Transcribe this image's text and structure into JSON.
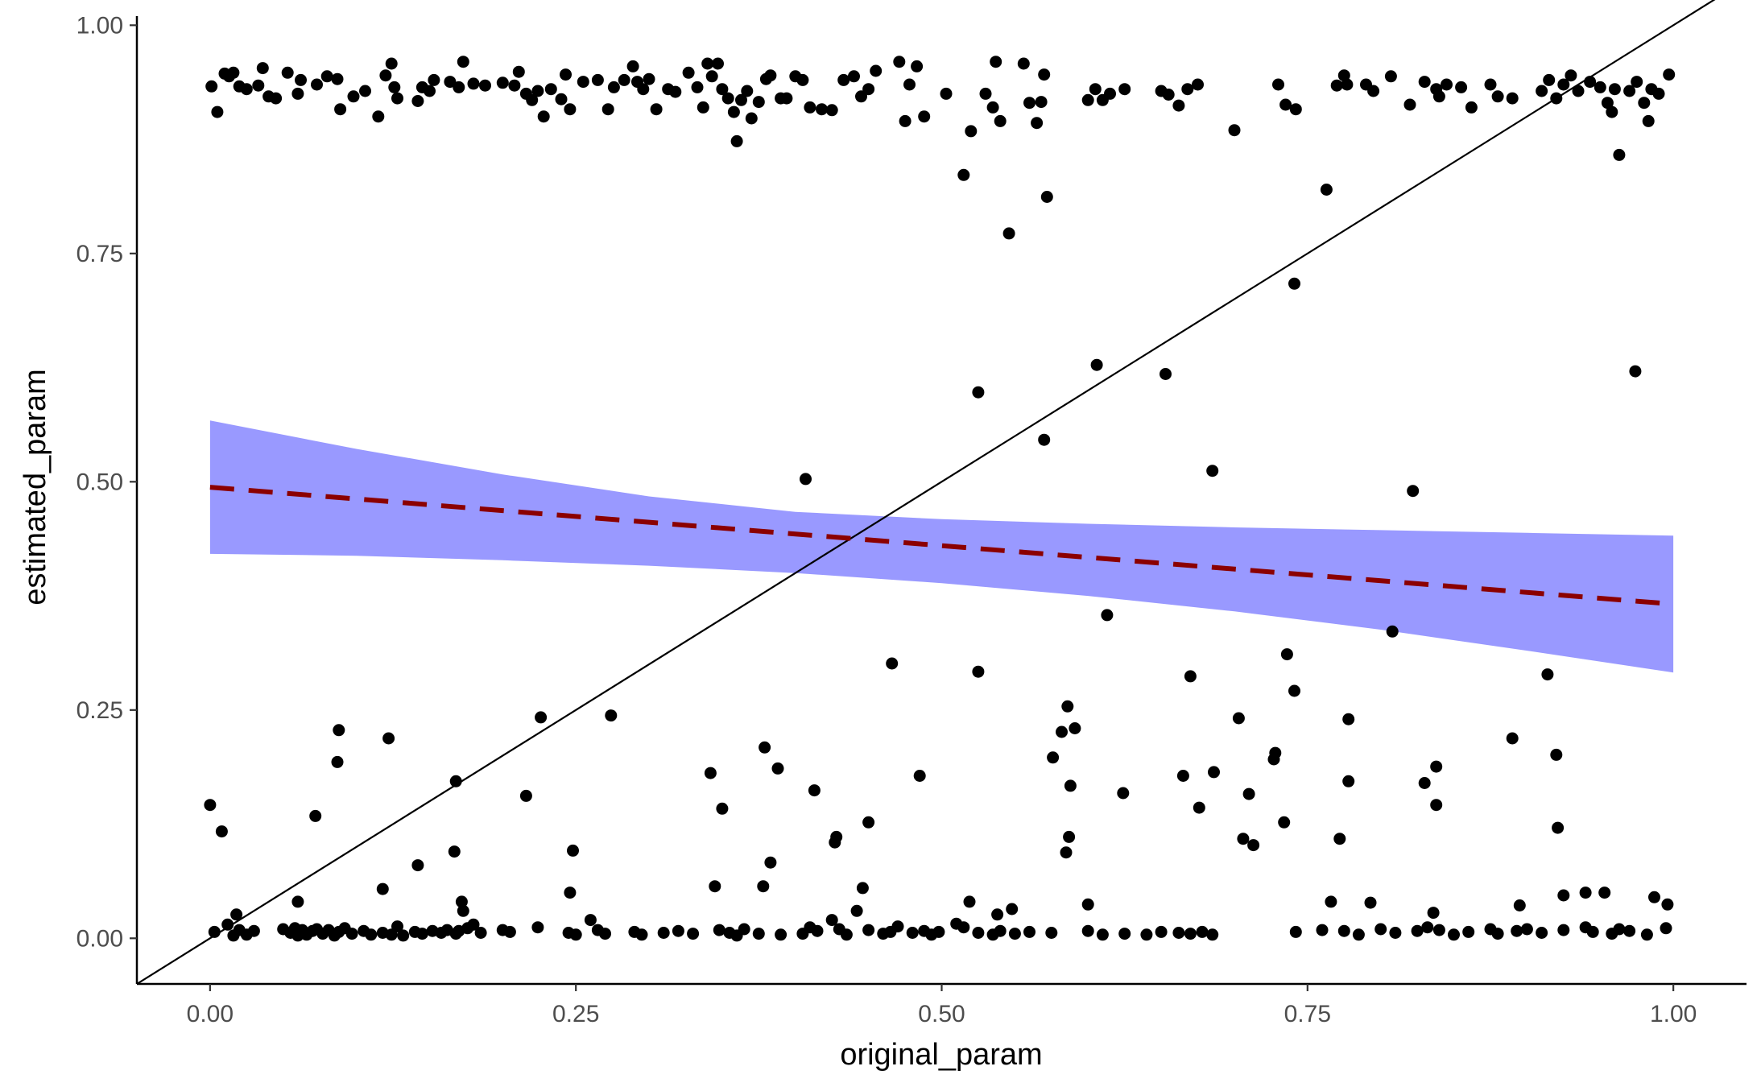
{
  "chart_data": {
    "type": "scatter",
    "title": "",
    "xlabel": "original_param",
    "ylabel": "estimated_param",
    "xlim": [
      -0.05,
      1.05
    ],
    "ylim": [
      -0.05,
      1.01
    ],
    "x_ticks": [
      0.0,
      0.25,
      0.5,
      0.75,
      1.0
    ],
    "x_tick_labels": [
      "0.00",
      "0.25",
      "0.50",
      "0.75",
      "1.00"
    ],
    "y_ticks": [
      0.0,
      0.25,
      0.5,
      0.75,
      1.0
    ],
    "y_tick_labels": [
      "0.00",
      "0.25",
      "0.50",
      "0.75",
      "1.00"
    ],
    "grid": false,
    "legend": "none",
    "identity_line": {
      "from": [
        -0.05,
        -0.05
      ],
      "to": [
        1.05,
        1.05
      ],
      "color": "#000000"
    },
    "fit_line": {
      "x": [
        0.0,
        1.0
      ],
      "y": [
        0.494,
        0.366
      ],
      "color": "#8b0000",
      "style": "dashed"
    },
    "confidence_band": {
      "x": [
        0.0,
        0.1,
        0.2,
        0.3,
        0.4,
        0.5,
        0.6,
        0.7,
        0.8,
        0.9,
        1.0
      ],
      "upper": [
        0.567,
        0.536,
        0.508,
        0.484,
        0.467,
        0.459,
        0.454,
        0.45,
        0.447,
        0.444,
        0.441
      ],
      "lower": [
        0.421,
        0.419,
        0.414,
        0.408,
        0.4,
        0.389,
        0.375,
        0.358,
        0.338,
        0.315,
        0.291
      ],
      "color": "#9999ff"
    },
    "point_color": "#000000",
    "points": [
      [
        0.001,
        0.933
      ],
      [
        0.005,
        0.905
      ],
      [
        0.01,
        0.947
      ],
      [
        0.013,
        0.944
      ],
      [
        0.016,
        0.948
      ],
      [
        0.02,
        0.933
      ],
      [
        0.025,
        0.93
      ],
      [
        0.033,
        0.934
      ],
      [
        0.036,
        0.953
      ],
      [
        0.04,
        0.922
      ],
      [
        0.045,
        0.92
      ],
      [
        0.053,
        0.948
      ],
      [
        0.06,
        0.925
      ],
      [
        0.062,
        0.94
      ],
      [
        0.073,
        0.935
      ],
      [
        0.08,
        0.944
      ],
      [
        0.087,
        0.941
      ],
      [
        0.089,
        0.908
      ],
      [
        0.098,
        0.922
      ],
      [
        0.106,
        0.928
      ],
      [
        0.115,
        0.9
      ],
      [
        0.12,
        0.945
      ],
      [
        0.124,
        0.958
      ],
      [
        0.126,
        0.932
      ],
      [
        0.128,
        0.92
      ],
      [
        0.142,
        0.917
      ],
      [
        0.145,
        0.932
      ],
      [
        0.15,
        0.928
      ],
      [
        0.153,
        0.94
      ],
      [
        0.164,
        0.938
      ],
      [
        0.17,
        0.932
      ],
      [
        0.173,
        0.96
      ],
      [
        0.18,
        0.936
      ],
      [
        0.188,
        0.934
      ],
      [
        0.2,
        0.937
      ],
      [
        0.208,
        0.934
      ],
      [
        0.211,
        0.949
      ],
      [
        0.216,
        0.925
      ],
      [
        0.22,
        0.918
      ],
      [
        0.224,
        0.928
      ],
      [
        0.228,
        0.9
      ],
      [
        0.233,
        0.93
      ],
      [
        0.24,
        0.919
      ],
      [
        0.243,
        0.946
      ],
      [
        0.246,
        0.908
      ],
      [
        0.255,
        0.938
      ],
      [
        0.265,
        0.94
      ],
      [
        0.272,
        0.908
      ],
      [
        0.276,
        0.932
      ],
      [
        0.283,
        0.94
      ],
      [
        0.289,
        0.955
      ],
      [
        0.292,
        0.938
      ],
      [
        0.296,
        0.93
      ],
      [
        0.3,
        0.941
      ],
      [
        0.305,
        0.908
      ],
      [
        0.313,
        0.93
      ],
      [
        0.318,
        0.927
      ],
      [
        0.327,
        0.948
      ],
      [
        0.333,
        0.932
      ],
      [
        0.337,
        0.91
      ],
      [
        0.34,
        0.958
      ],
      [
        0.343,
        0.944
      ],
      [
        0.347,
        0.958
      ],
      [
        0.35,
        0.93
      ],
      [
        0.354,
        0.92
      ],
      [
        0.358,
        0.905
      ],
      [
        0.363,
        0.918
      ],
      [
        0.367,
        0.928
      ],
      [
        0.37,
        0.898
      ],
      [
        0.375,
        0.916
      ],
      [
        0.38,
        0.941
      ],
      [
        0.383,
        0.945
      ],
      [
        0.39,
        0.92
      ],
      [
        0.394,
        0.92
      ],
      [
        0.4,
        0.944
      ],
      [
        0.405,
        0.94
      ],
      [
        0.41,
        0.91
      ],
      [
        0.418,
        0.908
      ],
      [
        0.425,
        0.907
      ],
      [
        0.433,
        0.94
      ],
      [
        0.44,
        0.944
      ],
      [
        0.445,
        0.922
      ],
      [
        0.45,
        0.93
      ],
      [
        0.455,
        0.95
      ],
      [
        0.471,
        0.96
      ],
      [
        0.475,
        0.895
      ],
      [
        0.478,
        0.935
      ],
      [
        0.483,
        0.955
      ],
      [
        0.488,
        0.9
      ],
      [
        0.503,
        0.925
      ],
      [
        0.515,
        0.836
      ],
      [
        0.52,
        0.884
      ],
      [
        0.53,
        0.925
      ],
      [
        0.535,
        0.91
      ],
      [
        0.537,
        0.96
      ],
      [
        0.54,
        0.895
      ],
      [
        0.556,
        0.958
      ],
      [
        0.56,
        0.915
      ],
      [
        0.565,
        0.893
      ],
      [
        0.568,
        0.916
      ],
      [
        0.57,
        0.946
      ],
      [
        0.572,
        0.812
      ],
      [
        0.6,
        0.918
      ],
      [
        0.605,
        0.93
      ],
      [
        0.61,
        0.918
      ],
      [
        0.615,
        0.925
      ],
      [
        0.625,
        0.93
      ],
      [
        0.65,
        0.928
      ],
      [
        0.655,
        0.924
      ],
      [
        0.662,
        0.912
      ],
      [
        0.668,
        0.93
      ],
      [
        0.675,
        0.935
      ],
      [
        0.7,
        0.885
      ],
      [
        0.73,
        0.935
      ],
      [
        0.735,
        0.913
      ],
      [
        0.742,
        0.908
      ],
      [
        0.77,
        0.934
      ],
      [
        0.775,
        0.945
      ],
      [
        0.777,
        0.935
      ],
      [
        0.79,
        0.935
      ],
      [
        0.795,
        0.928
      ],
      [
        0.807,
        0.944
      ],
      [
        0.82,
        0.913
      ],
      [
        0.83,
        0.938
      ],
      [
        0.838,
        0.93
      ],
      [
        0.84,
        0.922
      ],
      [
        0.845,
        0.935
      ],
      [
        0.855,
        0.932
      ],
      [
        0.862,
        0.91
      ],
      [
        0.875,
        0.935
      ],
      [
        0.88,
        0.922
      ],
      [
        0.89,
        0.92
      ],
      [
        0.91,
        0.928
      ],
      [
        0.915,
        0.94
      ],
      [
        0.92,
        0.92
      ],
      [
        0.925,
        0.935
      ],
      [
        0.93,
        0.945
      ],
      [
        0.935,
        0.928
      ],
      [
        0.943,
        0.938
      ],
      [
        0.95,
        0.932
      ],
      [
        0.955,
        0.915
      ],
      [
        0.958,
        0.905
      ],
      [
        0.96,
        0.93
      ],
      [
        0.963,
        0.858
      ],
      [
        0.97,
        0.928
      ],
      [
        0.975,
        0.938
      ],
      [
        0.98,
        0.915
      ],
      [
        0.983,
        0.895
      ],
      [
        0.985,
        0.93
      ],
      [
        0.99,
        0.925
      ],
      [
        0.997,
        0.946
      ],
      [
        0.36,
        0.873
      ],
      [
        0.763,
        0.82
      ],
      [
        0.546,
        0.772
      ],
      [
        0.741,
        0.717
      ],
      [
        0.606,
        0.628
      ],
      [
        0.653,
        0.618
      ],
      [
        0.974,
        0.621
      ],
      [
        0.525,
        0.598
      ],
      [
        0.57,
        0.546
      ],
      [
        0.407,
        0.503
      ],
      [
        0.685,
        0.512
      ],
      [
        0.822,
        0.49
      ],
      [
        0.613,
        0.354
      ],
      [
        0.808,
        0.336
      ],
      [
        0.466,
        0.301
      ],
      [
        0.525,
        0.292
      ],
      [
        0.736,
        0.311
      ],
      [
        0.914,
        0.289
      ],
      [
        0.67,
        0.287
      ],
      [
        0.741,
        0.271
      ],
      [
        0.0,
        0.146
      ],
      [
        0.008,
        0.117
      ],
      [
        0.06,
        0.04
      ],
      [
        0.087,
        0.193
      ],
      [
        0.088,
        0.228
      ],
      [
        0.072,
        0.134
      ],
      [
        0.118,
        0.054
      ],
      [
        0.122,
        0.219
      ],
      [
        0.142,
        0.08
      ],
      [
        0.167,
        0.095
      ],
      [
        0.168,
        0.172
      ],
      [
        0.172,
        0.04
      ],
      [
        0.173,
        0.03
      ],
      [
        0.216,
        0.156
      ],
      [
        0.226,
        0.242
      ],
      [
        0.246,
        0.05
      ],
      [
        0.248,
        0.096
      ],
      [
        0.274,
        0.244
      ],
      [
        0.342,
        0.181
      ],
      [
        0.345,
        0.057
      ],
      [
        0.35,
        0.142
      ],
      [
        0.378,
        0.057
      ],
      [
        0.379,
        0.209
      ],
      [
        0.388,
        0.186
      ],
      [
        0.383,
        0.083
      ],
      [
        0.413,
        0.162
      ],
      [
        0.428,
        0.111
      ],
      [
        0.427,
        0.105
      ],
      [
        0.442,
        0.03
      ],
      [
        0.446,
        0.055
      ],
      [
        0.45,
        0.127
      ],
      [
        0.485,
        0.178
      ],
      [
        0.519,
        0.04
      ],
      [
        0.538,
        0.026
      ],
      [
        0.548,
        0.032
      ],
      [
        0.582,
        0.226
      ],
      [
        0.586,
        0.254
      ],
      [
        0.591,
        0.23
      ],
      [
        0.588,
        0.167
      ],
      [
        0.576,
        0.198
      ],
      [
        0.585,
        0.094
      ],
      [
        0.587,
        0.111
      ],
      [
        0.6,
        0.037
      ],
      [
        0.624,
        0.159
      ],
      [
        0.665,
        0.178
      ],
      [
        0.676,
        0.143
      ],
      [
        0.686,
        0.182
      ],
      [
        0.703,
        0.241
      ],
      [
        0.706,
        0.109
      ],
      [
        0.71,
        0.158
      ],
      [
        0.713,
        0.102
      ],
      [
        0.727,
        0.196
      ],
      [
        0.728,
        0.203
      ],
      [
        0.734,
        0.127
      ],
      [
        0.766,
        0.04
      ],
      [
        0.772,
        0.109
      ],
      [
        0.778,
        0.24
      ],
      [
        0.778,
        0.172
      ],
      [
        0.793,
        0.039
      ],
      [
        0.83,
        0.17
      ],
      [
        0.838,
        0.188
      ],
      [
        0.838,
        0.146
      ],
      [
        0.836,
        0.028
      ],
      [
        0.89,
        0.219
      ],
      [
        0.895,
        0.036
      ],
      [
        0.92,
        0.201
      ],
      [
        0.921,
        0.121
      ],
      [
        0.925,
        0.047
      ],
      [
        0.94,
        0.05
      ],
      [
        0.953,
        0.05
      ],
      [
        0.987,
        0.045
      ],
      [
        0.996,
        0.037
      ],
      [
        0.94,
        0.012
      ],
      [
        0.003,
        0.007
      ],
      [
        0.012,
        0.015
      ],
      [
        0.016,
        0.003
      ],
      [
        0.018,
        0.026
      ],
      [
        0.02,
        0.009
      ],
      [
        0.025,
        0.004
      ],
      [
        0.03,
        0.008
      ],
      [
        0.05,
        0.01
      ],
      [
        0.055,
        0.006
      ],
      [
        0.058,
        0.011
      ],
      [
        0.06,
        0.003
      ],
      [
        0.063,
        0.009
      ],
      [
        0.066,
        0.004
      ],
      [
        0.07,
        0.008
      ],
      [
        0.073,
        0.01
      ],
      [
        0.077,
        0.005
      ],
      [
        0.081,
        0.009
      ],
      [
        0.085,
        0.003
      ],
      [
        0.088,
        0.007
      ],
      [
        0.092,
        0.011
      ],
      [
        0.097,
        0.005
      ],
      [
        0.105,
        0.008
      ],
      [
        0.11,
        0.004
      ],
      [
        0.118,
        0.006
      ],
      [
        0.124,
        0.004
      ],
      [
        0.128,
        0.013
      ],
      [
        0.132,
        0.003
      ],
      [
        0.14,
        0.007
      ],
      [
        0.145,
        0.005
      ],
      [
        0.152,
        0.008
      ],
      [
        0.158,
        0.006
      ],
      [
        0.162,
        0.009
      ],
      [
        0.168,
        0.005
      ],
      [
        0.17,
        0.008
      ],
      [
        0.176,
        0.011
      ],
      [
        0.18,
        0.015
      ],
      [
        0.185,
        0.006
      ],
      [
        0.2,
        0.009
      ],
      [
        0.205,
        0.007
      ],
      [
        0.224,
        0.012
      ],
      [
        0.245,
        0.006
      ],
      [
        0.25,
        0.004
      ],
      [
        0.26,
        0.02
      ],
      [
        0.265,
        0.009
      ],
      [
        0.27,
        0.005
      ],
      [
        0.29,
        0.007
      ],
      [
        0.295,
        0.004
      ],
      [
        0.31,
        0.006
      ],
      [
        0.32,
        0.008
      ],
      [
        0.33,
        0.005
      ],
      [
        0.348,
        0.009
      ],
      [
        0.355,
        0.006
      ],
      [
        0.36,
        0.003
      ],
      [
        0.365,
        0.01
      ],
      [
        0.375,
        0.005
      ],
      [
        0.39,
        0.004
      ],
      [
        0.405,
        0.005
      ],
      [
        0.41,
        0.012
      ],
      [
        0.415,
        0.008
      ],
      [
        0.425,
        0.02
      ],
      [
        0.43,
        0.01
      ],
      [
        0.435,
        0.004
      ],
      [
        0.45,
        0.009
      ],
      [
        0.46,
        0.005
      ],
      [
        0.465,
        0.007
      ],
      [
        0.47,
        0.013
      ],
      [
        0.48,
        0.006
      ],
      [
        0.488,
        0.008
      ],
      [
        0.493,
        0.004
      ],
      [
        0.498,
        0.007
      ],
      [
        0.51,
        0.016
      ],
      [
        0.515,
        0.012
      ],
      [
        0.525,
        0.006
      ],
      [
        0.535,
        0.004
      ],
      [
        0.54,
        0.008
      ],
      [
        0.55,
        0.005
      ],
      [
        0.56,
        0.007
      ],
      [
        0.575,
        0.006
      ],
      [
        0.6,
        0.008
      ],
      [
        0.61,
        0.004
      ],
      [
        0.625,
        0.005
      ],
      [
        0.64,
        0.004
      ],
      [
        0.65,
        0.007
      ],
      [
        0.662,
        0.006
      ],
      [
        0.67,
        0.005
      ],
      [
        0.678,
        0.007
      ],
      [
        0.685,
        0.004
      ],
      [
        0.742,
        0.007
      ],
      [
        0.76,
        0.009
      ],
      [
        0.775,
        0.008
      ],
      [
        0.785,
        0.004
      ],
      [
        0.8,
        0.01
      ],
      [
        0.81,
        0.006
      ],
      [
        0.825,
        0.008
      ],
      [
        0.832,
        0.012
      ],
      [
        0.84,
        0.009
      ],
      [
        0.85,
        0.004
      ],
      [
        0.86,
        0.007
      ],
      [
        0.875,
        0.01
      ],
      [
        0.88,
        0.005
      ],
      [
        0.893,
        0.008
      ],
      [
        0.9,
        0.01
      ],
      [
        0.91,
        0.006
      ],
      [
        0.925,
        0.009
      ],
      [
        0.945,
        0.007
      ],
      [
        0.958,
        0.005
      ],
      [
        0.963,
        0.01
      ],
      [
        0.97,
        0.008
      ],
      [
        0.982,
        0.004
      ],
      [
        0.995,
        0.011
      ]
    ]
  }
}
